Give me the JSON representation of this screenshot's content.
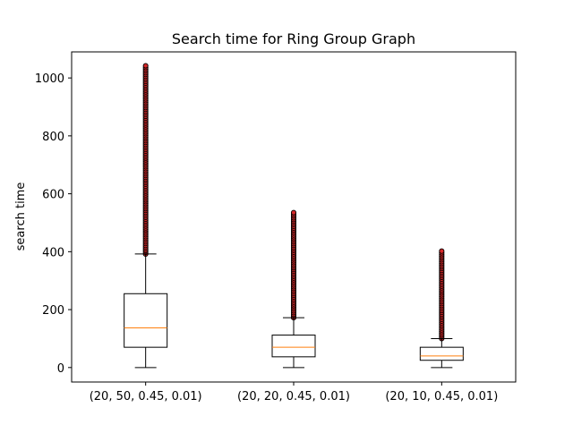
{
  "chart_data": {
    "type": "box",
    "title": "Search time for Ring Group Graph",
    "xlabel": "",
    "ylabel": "search time",
    "ylim": [
      -50,
      1090
    ],
    "yticks": [
      0,
      200,
      400,
      600,
      800,
      1000
    ],
    "grid": false,
    "categories": [
      "(20, 50, 0.45, 0.01)",
      "(20, 20, 0.45, 0.01)",
      "(20, 10, 0.45, 0.01)"
    ],
    "boxes": [
      {
        "category": "(20, 50, 0.45, 0.01)",
        "whisker_low": 0,
        "q1": 70,
        "median": 137,
        "q3": 255,
        "whisker_high": 392,
        "outlier_range": [
          392,
          1042
        ]
      },
      {
        "category": "(20, 20, 0.45, 0.01)",
        "whisker_low": 0,
        "q1": 37,
        "median": 70,
        "q3": 112,
        "whisker_high": 172,
        "outlier_range": [
          172,
          535
        ]
      },
      {
        "category": "(20, 10, 0.45, 0.01)",
        "whisker_low": 0,
        "q1": 25,
        "median": 40,
        "q3": 70,
        "whisker_high": 100,
        "outlier_range": [
          100,
          402
        ]
      }
    ],
    "colors": {
      "box": "#000000",
      "median": "#ff7f0e",
      "outlier_edge": "#000000",
      "outlier_fill": "#d62728"
    }
  }
}
